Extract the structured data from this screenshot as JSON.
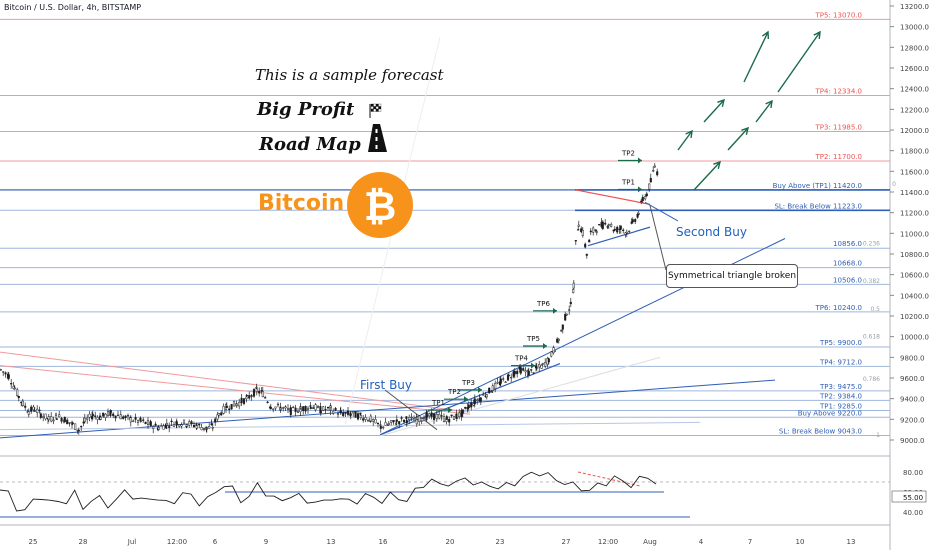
{
  "header": {
    "title": "Bitcoin / U.S. Dollar, 4h, BITSTAMP"
  },
  "annotations": {
    "sample": "This is a sample forecast",
    "big_profit": "Big Profit",
    "road_map": "Road Map",
    "bitcoin": "Bitcoin",
    "first_buy": "First Buy",
    "second_buy": "Second Buy",
    "triangle": "Symmetrical triangle broken",
    "zero": "0"
  },
  "colors": {
    "up": "#26a69a",
    "down": "#ef5350",
    "candle": "#1e1e1e",
    "target_green": "#1a6b4a",
    "blue_line": "#2f5fb5",
    "red_line": "#ef9a9a",
    "bitcoin": "#f7931a"
  },
  "chart_data": {
    "type": "line",
    "title": "Bitcoin / U.S. Dollar, 4h, BITSTAMP",
    "x_ticks": [
      "25",
      "28",
      "Jul",
      "12:00",
      "6",
      "9",
      "13",
      "16",
      "20",
      "23",
      "27",
      "12:00",
      "Aug",
      "4",
      "7",
      "10",
      "13"
    ],
    "ylim": [
      8900,
      13200
    ],
    "y_ticks": [
      9000,
      9200,
      9400,
      9600,
      9800,
      10000,
      10200,
      10400,
      10600,
      10800,
      11000,
      11200,
      11400,
      11600,
      11800,
      12000,
      12200,
      12400,
      12600,
      12800,
      13000,
      13200
    ],
    "y_tick_labels": [
      "9000.0",
      "9200.0",
      "9400.0",
      "9600.0",
      "9800.0",
      "10000.0",
      "10200.0",
      "10400.0",
      "10600.0",
      "10800.0",
      "11000.0",
      "11200.0",
      "11400.0",
      "11600.0",
      "11800.0",
      "12000.0",
      "12200.0",
      "12400.0",
      "12600.0",
      "12800.0",
      "13000.0",
      "13200.0"
    ],
    "price_path": [
      [
        0,
        9680
      ],
      [
        8,
        9620
      ],
      [
        14,
        9500
      ],
      [
        18,
        9420
      ],
      [
        22,
        9350
      ],
      [
        28,
        9280
      ],
      [
        34,
        9300
      ],
      [
        40,
        9250
      ],
      [
        48,
        9200
      ],
      [
        56,
        9230
      ],
      [
        64,
        9200
      ],
      [
        72,
        9150
      ],
      [
        78,
        9100
      ],
      [
        84,
        9180
      ],
      [
        92,
        9240
      ],
      [
        100,
        9220
      ],
      [
        110,
        9260
      ],
      [
        120,
        9230
      ],
      [
        130,
        9200
      ],
      [
        140,
        9180
      ],
      [
        150,
        9150
      ],
      [
        158,
        9120
      ],
      [
        166,
        9150
      ],
      [
        176,
        9170
      ],
      [
        186,
        9160
      ],
      [
        196,
        9140
      ],
      [
        206,
        9110
      ],
      [
        212,
        9130
      ],
      [
        218,
        9250
      ],
      [
        226,
        9320
      ],
      [
        236,
        9350
      ],
      [
        246,
        9400
      ],
      [
        256,
        9480
      ],
      [
        262,
        9450
      ],
      [
        270,
        9330
      ],
      [
        280,
        9310
      ],
      [
        290,
        9280
      ],
      [
        300,
        9300
      ],
      [
        310,
        9330
      ],
      [
        320,
        9290
      ],
      [
        330,
        9300
      ],
      [
        340,
        9260
      ],
      [
        350,
        9250
      ],
      [
        360,
        9230
      ],
      [
        370,
        9200
      ],
      [
        380,
        9130
      ],
      [
        388,
        9150
      ],
      [
        396,
        9180
      ],
      [
        406,
        9200
      ],
      [
        416,
        9190
      ],
      [
        426,
        9230
      ],
      [
        436,
        9230
      ],
      [
        446,
        9200
      ],
      [
        456,
        9230
      ],
      [
        462,
        9260
      ],
      [
        468,
        9330
      ],
      [
        474,
        9370
      ],
      [
        480,
        9410
      ],
      [
        486,
        9450
      ],
      [
        492,
        9500
      ],
      [
        500,
        9560
      ],
      [
        508,
        9610
      ],
      [
        514,
        9660
      ],
      [
        520,
        9680
      ],
      [
        528,
        9650
      ],
      [
        536,
        9690
      ],
      [
        542,
        9720
      ],
      [
        548,
        9780
      ],
      [
        554,
        9890
      ],
      [
        558,
        9980
      ],
      [
        562,
        10100
      ],
      [
        566,
        10240
      ],
      [
        570,
        10300
      ],
      [
        573,
        10500
      ],
      [
        575,
        10900
      ],
      [
        578,
        11100
      ],
      [
        582,
        11000
      ],
      [
        586,
        10800
      ],
      [
        590,
        11000
      ],
      [
        596,
        11050
      ],
      [
        602,
        11080
      ],
      [
        608,
        11100
      ],
      [
        614,
        11030
      ],
      [
        620,
        11050
      ],
      [
        626,
        11010
      ],
      [
        632,
        11100
      ],
      [
        638,
        11200
      ],
      [
        642,
        11330
      ],
      [
        646,
        11380
      ],
      [
        650,
        11500
      ],
      [
        654,
        11650
      ],
      [
        657,
        11580
      ]
    ],
    "levels": [
      {
        "label": "TP5: 13070.0",
        "value": 13070,
        "color": "#ef5350"
      },
      {
        "label": "TP4: 12334.0",
        "value": 12334,
        "color": "#ef5350"
      },
      {
        "label": "TP3: 11985.0",
        "value": 11985,
        "color": "#ef5350"
      },
      {
        "label": "TP2: 11700.0",
        "value": 11700,
        "color": "#ef5350"
      },
      {
        "label": "Buy Above (TP1) 11420.0",
        "value": 11420,
        "color": "#2f5fb5"
      },
      {
        "label": "SL: Break Below 11223.0",
        "value": 11223,
        "color": "#2f5fb5"
      },
      {
        "label": "10856.0",
        "value": 10856,
        "color": "#2f5fb5"
      },
      {
        "label": "10668.0",
        "value": 10668,
        "color": "#2f5fb5"
      },
      {
        "label": "10506.0",
        "value": 10506,
        "color": "#2f5fb5"
      },
      {
        "label": "TP6: 10240.0",
        "value": 10240,
        "color": "#2f5fb5"
      },
      {
        "label": "TP5: 9900.0",
        "value": 9900,
        "color": "#2f5fb5"
      },
      {
        "label": "TP4: 9712.0",
        "value": 9712,
        "color": "#2f5fb5"
      },
      {
        "label": "TP3: 9475.0",
        "value": 9475,
        "color": "#2f5fb5"
      },
      {
        "label": "TP2: 9384.0",
        "value": 9384,
        "color": "#2f5fb5"
      },
      {
        "label": "TP1: 9285.0",
        "value": 9285,
        "color": "#2f5fb5"
      },
      {
        "label": "Buy Above 9220.0",
        "value": 9220,
        "color": "#2f5fb5"
      },
      {
        "label": "SL: Break Below 9043.0",
        "value": 9043,
        "color": "#2f5fb5"
      }
    ],
    "fib_labels": [
      {
        "label": "0.236",
        "value": 10900
      },
      {
        "label": "0.382",
        "value": 10540
      },
      {
        "label": "0.5",
        "value": 10270
      },
      {
        "label": "0.618",
        "value": 10000
      },
      {
        "label": "0.786",
        "value": 9590
      },
      {
        "label": "1",
        "value": 9050
      }
    ],
    "tp_markers": [
      {
        "label": "TP1",
        "x": 432,
        "value": 9290
      },
      {
        "label": "TP2",
        "x": 448,
        "value": 9395
      },
      {
        "label": "TP3",
        "x": 462,
        "value": 9485
      },
      {
        "label": "TP4",
        "x": 515,
        "value": 9720
      },
      {
        "label": "TP5",
        "x": 527,
        "value": 9910
      },
      {
        "label": "TP6",
        "x": 537,
        "value": 10250
      },
      {
        "label": "TP1",
        "x": 622,
        "value": 11425
      },
      {
        "label": "TP2",
        "x": 622,
        "value": 11705
      }
    ],
    "oscillator": {
      "ylim": [
        30,
        90
      ],
      "y_ticks": [
        40,
        60,
        80
      ],
      "y_tick_labels": [
        "40.00",
        "60.00",
        "80.00"
      ],
      "current_label": "55.00",
      "levels": [
        70,
        60,
        35
      ],
      "values": [
        62,
        58,
        45,
        40,
        52,
        56,
        48,
        52,
        50,
        58,
        46,
        50,
        54,
        48,
        50,
        62,
        56,
        50,
        55,
        53,
        48,
        52,
        58,
        56,
        50,
        52,
        60,
        68,
        62,
        52,
        56,
        66,
        60,
        54,
        50,
        58,
        55,
        50,
        52,
        48,
        55,
        53,
        50,
        52,
        56,
        54,
        52,
        56,
        54,
        52,
        60,
        68,
        72,
        66,
        70,
        68,
        74,
        70,
        66,
        68,
        64,
        66,
        70,
        74,
        78,
        80,
        76,
        72,
        70,
        66,
        64,
        62,
        66,
        70,
        74,
        70,
        68,
        72,
        75,
        70
      ],
      "x_range": [
        0,
        656
      ]
    }
  }
}
